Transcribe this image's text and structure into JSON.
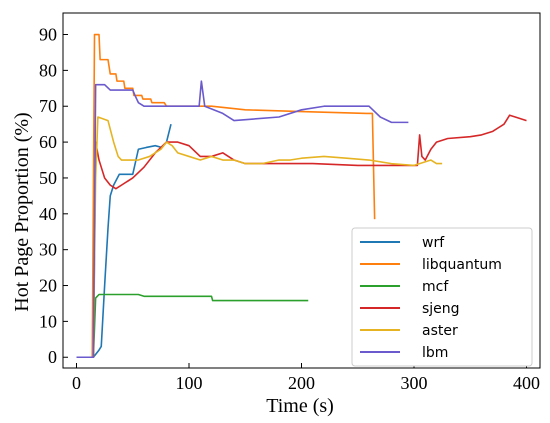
{
  "chart_data": {
    "type": "line",
    "xlabel": "Time (s)",
    "ylabel": "Hot Page Proportion (%)",
    "xlim": [
      -12,
      412
    ],
    "ylim": [
      -3,
      96
    ],
    "xticks": [
      0,
      100,
      200,
      300,
      400
    ],
    "yticks": [
      0,
      10,
      20,
      30,
      40,
      50,
      60,
      70,
      80,
      90
    ],
    "legend_position": "lower-right",
    "series": [
      {
        "name": "wrf",
        "color": "#1f77b4",
        "points": [
          [
            0,
            0
          ],
          [
            15,
            0
          ],
          [
            20,
            2
          ],
          [
            22,
            3
          ],
          [
            25,
            20
          ],
          [
            28,
            36
          ],
          [
            30,
            45
          ],
          [
            33,
            48
          ],
          [
            38,
            51
          ],
          [
            50,
            51
          ],
          [
            55,
            58
          ],
          [
            62,
            58.5
          ],
          [
            70,
            59
          ],
          [
            76,
            58.5
          ],
          [
            80,
            60
          ],
          [
            84,
            65
          ]
        ]
      },
      {
        "name": "libquantum",
        "color": "#ff7f0e",
        "points": [
          [
            0,
            0
          ],
          [
            14,
            0
          ],
          [
            16,
            90
          ],
          [
            20,
            90
          ],
          [
            21,
            83
          ],
          [
            25,
            83
          ],
          [
            28,
            83
          ],
          [
            30,
            79
          ],
          [
            35,
            79
          ],
          [
            36,
            77
          ],
          [
            42,
            77
          ],
          [
            43,
            75
          ],
          [
            50,
            75
          ],
          [
            51,
            73
          ],
          [
            58,
            73
          ],
          [
            59,
            72
          ],
          [
            66,
            72
          ],
          [
            67,
            71
          ],
          [
            78,
            71
          ],
          [
            80,
            70
          ],
          [
            100,
            70
          ],
          [
            120,
            70
          ],
          [
            150,
            69
          ],
          [
            200,
            68.5
          ],
          [
            258,
            68
          ],
          [
            263,
            68
          ],
          [
            265,
            38.5
          ]
        ]
      },
      {
        "name": "mcf",
        "color": "#2ca02c",
        "points": [
          [
            0,
            0
          ],
          [
            15,
            0
          ],
          [
            17,
            16.5
          ],
          [
            20,
            17.5
          ],
          [
            55,
            17.5
          ],
          [
            60,
            17
          ],
          [
            120,
            17
          ],
          [
            121,
            15.8
          ],
          [
            206,
            15.8
          ]
        ]
      },
      {
        "name": "sjeng",
        "color": "#d62728",
        "points": [
          [
            0,
            0
          ],
          [
            15,
            0
          ],
          [
            17,
            60
          ],
          [
            20,
            55
          ],
          [
            22,
            53
          ],
          [
            25,
            50
          ],
          [
            30,
            48
          ],
          [
            35,
            47
          ],
          [
            40,
            48
          ],
          [
            50,
            50
          ],
          [
            60,
            53
          ],
          [
            70,
            57
          ],
          [
            80,
            60
          ],
          [
            90,
            60
          ],
          [
            100,
            59
          ],
          [
            110,
            56
          ],
          [
            120,
            56
          ],
          [
            130,
            57
          ],
          [
            140,
            55
          ],
          [
            150,
            54
          ],
          [
            170,
            54
          ],
          [
            190,
            54
          ],
          [
            210,
            54
          ],
          [
            250,
            53.5
          ],
          [
            300,
            53.5
          ],
          [
            303,
            53.5
          ],
          [
            305,
            62
          ],
          [
            307,
            56
          ],
          [
            310,
            55
          ],
          [
            315,
            58
          ],
          [
            320,
            60
          ],
          [
            330,
            61
          ],
          [
            350,
            61.5
          ],
          [
            360,
            62
          ],
          [
            370,
            63
          ],
          [
            375,
            64
          ],
          [
            380,
            65
          ],
          [
            385,
            67.5
          ],
          [
            390,
            67
          ],
          [
            400,
            66
          ]
        ]
      },
      {
        "name": "aster",
        "color": "#e6b422",
        "points": [
          [
            0,
            0
          ],
          [
            15,
            0
          ],
          [
            17,
            50
          ],
          [
            19,
            67
          ],
          [
            28,
            66
          ],
          [
            33,
            60
          ],
          [
            37,
            56
          ],
          [
            40,
            55
          ],
          [
            55,
            55
          ],
          [
            65,
            56
          ],
          [
            75,
            58
          ],
          [
            80,
            60
          ],
          [
            85,
            59
          ],
          [
            90,
            57
          ],
          [
            100,
            56
          ],
          [
            110,
            55
          ],
          [
            120,
            56
          ],
          [
            130,
            55
          ],
          [
            140,
            55
          ],
          [
            150,
            54
          ],
          [
            165,
            54
          ],
          [
            180,
            55
          ],
          [
            190,
            55
          ],
          [
            200,
            55.5
          ],
          [
            220,
            56
          ],
          [
            240,
            55.5
          ],
          [
            260,
            55
          ],
          [
            280,
            54
          ],
          [
            300,
            53.5
          ],
          [
            305,
            54
          ],
          [
            315,
            55
          ],
          [
            320,
            54
          ],
          [
            325,
            54
          ]
        ]
      },
      {
        "name": "lbm",
        "color": "#6a5acd",
        "points": [
          [
            0,
            0
          ],
          [
            15,
            0
          ],
          [
            17,
            76
          ],
          [
            25,
            76
          ],
          [
            30,
            74.5
          ],
          [
            50,
            74.5
          ],
          [
            52,
            73
          ],
          [
            55,
            71
          ],
          [
            60,
            70
          ],
          [
            100,
            70
          ],
          [
            109,
            70
          ],
          [
            111,
            77
          ],
          [
            114,
            70
          ],
          [
            130,
            68
          ],
          [
            140,
            66
          ],
          [
            180,
            67
          ],
          [
            200,
            69
          ],
          [
            220,
            70
          ],
          [
            260,
            70
          ],
          [
            270,
            67
          ],
          [
            280,
            65.5
          ],
          [
            295,
            65.5
          ]
        ]
      }
    ]
  }
}
